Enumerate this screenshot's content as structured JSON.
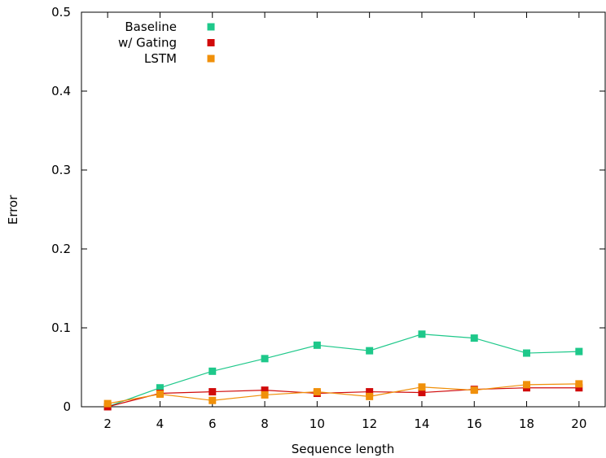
{
  "chart_data": {
    "type": "line",
    "xlabel": "Sequence length",
    "ylabel": "Error",
    "x": [
      2,
      4,
      6,
      8,
      10,
      12,
      14,
      16,
      18,
      20
    ],
    "xlim": [
      1,
      21
    ],
    "ylim": [
      0,
      0.5
    ],
    "xticks": [
      2,
      4,
      6,
      8,
      10,
      12,
      14,
      16,
      18,
      20
    ],
    "yticks": [
      0,
      0.1,
      0.2,
      0.3,
      0.4,
      0.5
    ],
    "ytick_labels": [
      "0",
      "0.1",
      "0.2",
      "0.3",
      "0.4",
      "0.5"
    ],
    "grid": false,
    "legend_position": "top-left",
    "series": [
      {
        "name": "Baseline",
        "color": "#1ec88a",
        "values": [
          0.0,
          0.024,
          0.045,
          0.061,
          0.078,
          0.071,
          0.092,
          0.087,
          0.068,
          0.07
        ]
      },
      {
        "name": "w/ Gating",
        "color": "#d10a0a",
        "values": [
          0.0,
          0.017,
          0.019,
          0.021,
          0.017,
          0.019,
          0.018,
          0.022,
          0.024,
          0.024
        ]
      },
      {
        "name": "LSTM",
        "color": "#f0900a",
        "values": [
          0.004,
          0.016,
          0.008,
          0.015,
          0.019,
          0.013,
          0.025,
          0.021,
          0.028,
          0.029
        ]
      }
    ]
  }
}
